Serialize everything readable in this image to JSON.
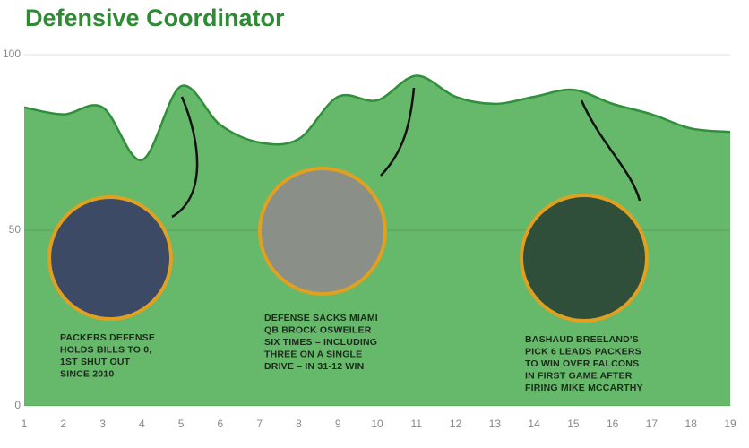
{
  "chart_data": {
    "type": "area",
    "title": "Defensive Coordinator",
    "x": [
      1,
      2,
      3,
      4,
      5,
      6,
      7,
      8,
      9,
      10,
      11,
      12,
      13,
      14,
      15,
      16,
      17,
      18,
      19
    ],
    "values": [
      85,
      83,
      85,
      70,
      91,
      80,
      75,
      76,
      88,
      87,
      94,
      88,
      86,
      88,
      90,
      86,
      83,
      79,
      78
    ],
    "color": "#66b86a",
    "line_color": "#2f8f3a",
    "xlim": [
      1,
      19
    ],
    "xticks": [
      1,
      2,
      3,
      4,
      5,
      6,
      7,
      8,
      9,
      10,
      11,
      12,
      13,
      14,
      15,
      16,
      17,
      18,
      19
    ],
    "ylim": [
      0,
      100
    ],
    "yticks": [
      0,
      50,
      100
    ],
    "grid": true,
    "annotations": [
      {
        "lines": [
          "PACKERS DEFENSE",
          "HOLDS BILLS TO 0,",
          "1ST SHUT OUT",
          "SINCE 2010"
        ]
      },
      {
        "lines": [
          "DEFENSE SACKS MIAMI",
          "QB BROCK OSWEILER",
          "SIX TIMES – INCLUDING",
          "THREE ON A SINGLE",
          "DRIVE – IN 31-12 WIN"
        ]
      },
      {
        "lines": [
          "BASHAUD BREELAND'S",
          "PICK 6 LEADS PACKERS",
          "TO WIN OVER FALCONS",
          "IN FIRST GAME AFTER",
          "FIRING MIKE MCCARTHY"
        ]
      }
    ]
  }
}
